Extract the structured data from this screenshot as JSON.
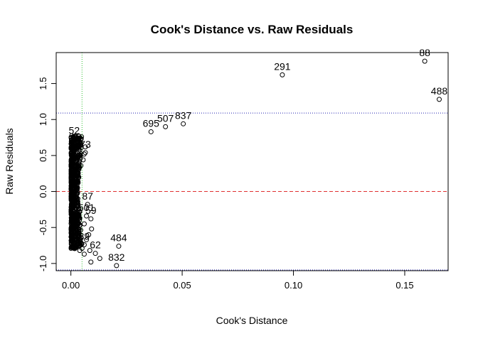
{
  "chart_data": {
    "type": "scatter",
    "title": "Cook's Distance vs. Raw Residuals",
    "xlabel": "Cook's Distance",
    "ylabel": "Raw Residuals",
    "xlim": [
      -0.0066,
      0.1695
    ],
    "ylim": [
      -1.1,
      1.93
    ],
    "xticks": [
      0.0,
      0.05,
      0.1,
      0.15
    ],
    "xtick_labels": [
      "0.00",
      "0.05",
      "0.10",
      "0.15"
    ],
    "yticks": [
      -1.0,
      -0.5,
      0.0,
      0.5,
      1.0,
      1.5
    ],
    "ytick_labels": [
      "-1.0",
      "-0.5",
      "0.0",
      "0.5",
      "1.0",
      "1.5"
    ],
    "grid": false,
    "reference_lines": [
      {
        "orientation": "horizontal",
        "value": 0.0,
        "color": "#e03030",
        "style": "dashed"
      },
      {
        "orientation": "horizontal",
        "value": 1.09,
        "color": "#2020b0",
        "style": "dotted"
      },
      {
        "orientation": "horizontal",
        "value": -1.09,
        "color": "#2020b0",
        "style": "dotted"
      },
      {
        "orientation": "vertical",
        "value": 0.005,
        "color": "#30c030",
        "style": "dotted"
      }
    ],
    "labeled_points": [
      {
        "x": 0.159,
        "y": 1.81,
        "label": "88"
      },
      {
        "x": 0.095,
        "y": 1.62,
        "label": "291"
      },
      {
        "x": 0.1655,
        "y": 1.28,
        "label": "488"
      },
      {
        "x": 0.036,
        "y": 0.83,
        "label": "695"
      },
      {
        "x": 0.0425,
        "y": 0.9,
        "label": "507"
      },
      {
        "x": 0.0505,
        "y": 0.94,
        "label": "837"
      },
      {
        "x": 0.0015,
        "y": 0.73,
        "label": "52"
      },
      {
        "x": 0.0065,
        "y": 0.54,
        "label": "73"
      },
      {
        "x": 0.0075,
        "y": -0.18,
        "label": "87"
      },
      {
        "x": 0.007,
        "y": -0.34,
        "label": "501"
      },
      {
        "x": 0.009,
        "y": -0.38,
        "label": "59"
      },
      {
        "x": 0.0215,
        "y": -0.76,
        "label": "484"
      },
      {
        "x": 0.006,
        "y": -0.74,
        "label": "39"
      },
      {
        "x": 0.011,
        "y": -0.86,
        "label": "62"
      },
      {
        "x": 0.0205,
        "y": -1.03,
        "label": "832"
      }
    ],
    "unlabeled_points": [
      {
        "x": 0.0093,
        "y": -0.52
      },
      {
        "x": 0.008,
        "y": -0.6
      },
      {
        "x": 0.007,
        "y": -0.67
      },
      {
        "x": 0.005,
        "y": -0.79
      },
      {
        "x": 0.0085,
        "y": -0.82
      },
      {
        "x": 0.006,
        "y": -0.87
      },
      {
        "x": 0.013,
        "y": -0.93
      },
      {
        "x": 0.009,
        "y": -0.98
      },
      {
        "x": 0.004,
        "y": -0.82
      },
      {
        "x": 0.003,
        "y": -0.73
      },
      {
        "x": 0.0065,
        "y": 0.62
      },
      {
        "x": 0.006,
        "y": 0.52
      },
      {
        "x": 0.0055,
        "y": 0.44
      },
      {
        "x": 0.0045,
        "y": 0.36
      },
      {
        "x": 0.004,
        "y": -0.28
      },
      {
        "x": 0.006,
        "y": -0.45
      }
    ],
    "dense_cluster": {
      "x_range": [
        0.0,
        0.0058
      ],
      "y_range": [
        -0.8,
        0.78
      ],
      "count": 900
    }
  }
}
